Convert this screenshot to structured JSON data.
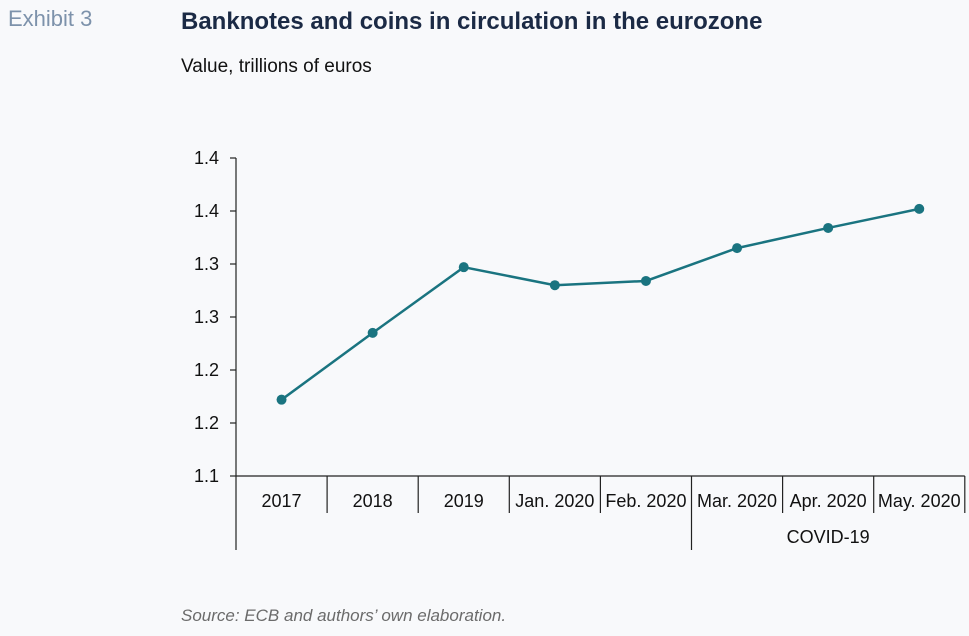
{
  "header": {
    "exhibit": "Exhibit 3",
    "title": "Banknotes and coins in circulation in the eurozone",
    "subtitle": "Value, trillions of euros"
  },
  "footer": {
    "source": "Source: ECB and authors’ own elaboration."
  },
  "chart_data": {
    "type": "line",
    "categories": [
      "2017",
      "2018",
      "2019",
      "Jan. 2020",
      "Feb. 2020",
      "Mar. 2020",
      "Apr. 2020",
      "May. 2020"
    ],
    "group_label": {
      "text": "COVID-19",
      "from_index": 5,
      "to_index": 7
    },
    "series": [
      {
        "values": [
          1.172,
          1.235,
          1.297,
          1.28,
          1.284,
          1.315,
          1.334,
          1.352
        ],
        "color": "#1a7480"
      }
    ],
    "y_ticks": [
      1.1,
      1.15,
      1.2,
      1.25,
      1.3,
      1.35,
      1.4
    ],
    "y_tick_labels": [
      "1.1",
      "1.2",
      "1.2",
      "1.3",
      "1.3",
      "1.4",
      "1.4"
    ],
    "ylim": [
      1.1,
      1.4
    ],
    "grid": false
  }
}
